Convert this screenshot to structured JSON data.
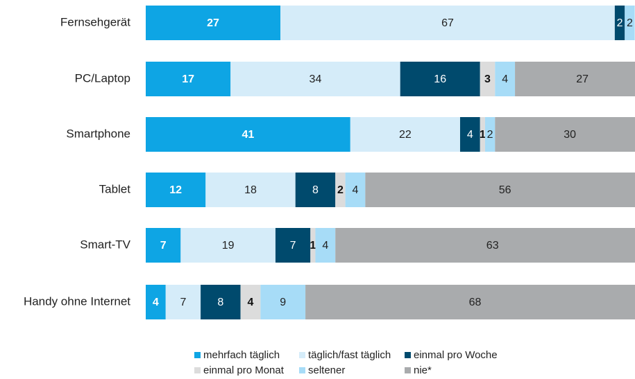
{
  "chart_data": {
    "type": "stacked-bar-horizontal",
    "categories": [
      "Fernsehgerät",
      "PC/Laptop",
      "Smartphone",
      "Tablet",
      "Smart-TV",
      "Handy ohne Internet"
    ],
    "xlim": [
      0,
      100
    ],
    "series": [
      {
        "name": "mehrfach täglich",
        "color": "#0ea5e4",
        "values": [
          27,
          17,
          41,
          12,
          7,
          4
        ]
      },
      {
        "name": "täglich/fast täglich",
        "color": "#d5ecf9",
        "values": [
          67,
          34,
          22,
          18,
          19,
          7
        ]
      },
      {
        "name": "einmal pro Woche",
        "color": "#004a6d",
        "values": [
          2,
          16,
          4,
          8,
          7,
          8
        ]
      },
      {
        "name": "einmal pro Monat",
        "color": "#dcdcdc",
        "values": [
          null,
          3,
          1,
          2,
          1,
          4
        ]
      },
      {
        "name": "seltener",
        "color": "#a7dcf7",
        "values": [
          2,
          4,
          2,
          4,
          4,
          9
        ]
      },
      {
        "name": "nie*",
        "color": "#a9abad",
        "values": [
          null,
          27,
          30,
          56,
          63,
          68
        ]
      }
    ]
  }
}
